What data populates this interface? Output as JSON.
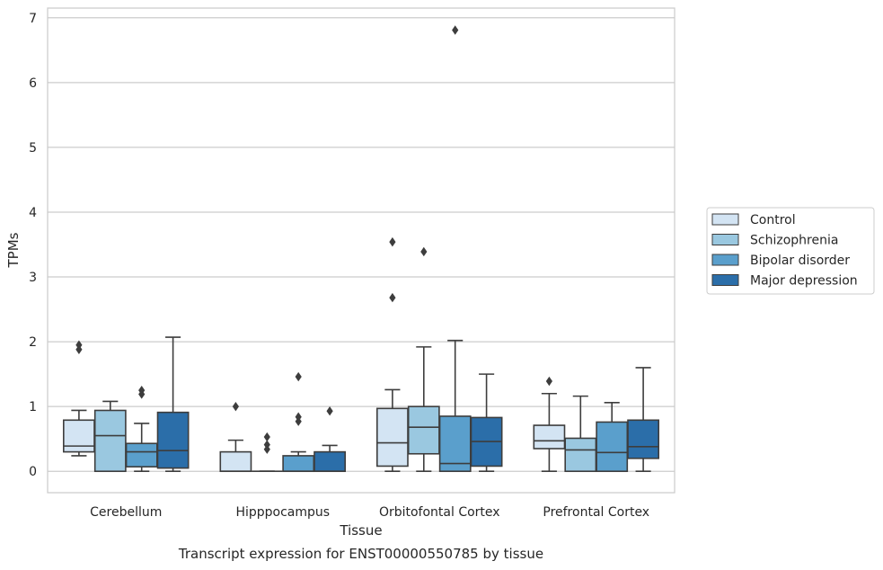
{
  "chart_data": {
    "type": "box",
    "caption": "Transcript expression for ENST00000550785 by tissue",
    "xlabel": "Tissue",
    "ylabel": "TPMs",
    "ylim": [
      -0.33,
      7.15
    ],
    "yticks": [
      0,
      1,
      2,
      3,
      4,
      5,
      6,
      7
    ],
    "grid": true,
    "legend_position": "right",
    "categories": [
      "Cerebellum",
      "Hipppocampus",
      "Orbitofontal Cortex",
      "Prefrontal Cortex"
    ],
    "series": [
      {
        "name": "Control",
        "color": "#d3e4f3",
        "boxes": [
          {
            "whislo": 0.24,
            "q1": 0.3,
            "med": 0.39,
            "q3": 0.79,
            "whishi": 0.94,
            "fliers": [
              1.88,
              1.95
            ]
          },
          {
            "whislo": 0.0,
            "q1": 0.0,
            "med": 0.0,
            "q3": 0.3,
            "whishi": 0.48,
            "fliers": [
              1.0
            ]
          },
          {
            "whislo": 0.0,
            "q1": 0.08,
            "med": 0.44,
            "q3": 0.97,
            "whishi": 1.26,
            "fliers": [
              2.68,
              3.54
            ]
          },
          {
            "whislo": 0.0,
            "q1": 0.35,
            "med": 0.47,
            "q3": 0.71,
            "whishi": 1.2,
            "fliers": [
              1.39
            ]
          }
        ]
      },
      {
        "name": "Schizophrenia",
        "color": "#9ac8e0",
        "boxes": [
          {
            "whislo": 0.0,
            "q1": 0.0,
            "med": 0.55,
            "q3": 0.94,
            "whishi": 1.08,
            "fliers": []
          },
          {
            "whislo": 0.0,
            "q1": 0.0,
            "med": 0.0,
            "q3": 0.0,
            "whishi": 0.0,
            "fliers": [
              0.34,
              0.41,
              0.53
            ]
          },
          {
            "whislo": 0.0,
            "q1": 0.27,
            "med": 0.68,
            "q3": 1.0,
            "whishi": 1.92,
            "fliers": [
              3.39
            ]
          },
          {
            "whislo": 0.0,
            "q1": 0.0,
            "med": 0.33,
            "q3": 0.51,
            "whishi": 1.16,
            "fliers": []
          }
        ]
      },
      {
        "name": "Bipolar disorder",
        "color": "#5a9fcc",
        "boxes": [
          {
            "whislo": 0.0,
            "q1": 0.07,
            "med": 0.3,
            "q3": 0.43,
            "whishi": 0.74,
            "fliers": [
              1.19,
              1.25
            ]
          },
          {
            "whislo": 0.0,
            "q1": 0.0,
            "med": 0.0,
            "q3": 0.24,
            "whishi": 0.3,
            "fliers": [
              0.77,
              0.84,
              1.46
            ]
          },
          {
            "whislo": 0.0,
            "q1": 0.0,
            "med": 0.12,
            "q3": 0.85,
            "whishi": 2.02,
            "fliers": [
              6.81
            ]
          },
          {
            "whislo": 0.0,
            "q1": 0.0,
            "med": 0.29,
            "q3": 0.76,
            "whishi": 1.06,
            "fliers": []
          }
        ]
      },
      {
        "name": "Major depression",
        "color": "#2b6ea9",
        "boxes": [
          {
            "whislo": 0.0,
            "q1": 0.05,
            "med": 0.32,
            "q3": 0.91,
            "whishi": 2.07,
            "fliers": []
          },
          {
            "whislo": 0.0,
            "q1": 0.0,
            "med": 0.0,
            "q3": 0.3,
            "whishi": 0.4,
            "fliers": [
              0.93
            ]
          },
          {
            "whislo": 0.0,
            "q1": 0.08,
            "med": 0.46,
            "q3": 0.83,
            "whishi": 1.5,
            "fliers": []
          },
          {
            "whislo": 0.0,
            "q1": 0.2,
            "med": 0.38,
            "q3": 0.79,
            "whishi": 1.6,
            "fliers": []
          }
        ]
      }
    ]
  }
}
